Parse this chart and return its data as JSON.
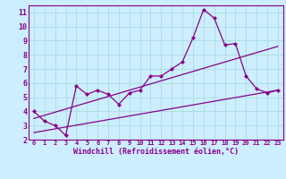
{
  "xlabel": "Windchill (Refroidissement éolien,°C)",
  "background_color": "#cceeff",
  "line_color": "#880088",
  "xlim": [
    -0.5,
    23.5
  ],
  "ylim": [
    2,
    11.5
  ],
  "xticks": [
    0,
    1,
    2,
    3,
    4,
    5,
    6,
    7,
    8,
    9,
    10,
    11,
    12,
    13,
    14,
    15,
    16,
    17,
    18,
    19,
    20,
    21,
    22,
    23
  ],
  "yticks": [
    2,
    3,
    4,
    5,
    6,
    7,
    8,
    9,
    10,
    11
  ],
  "grid_color": "#aadddd",
  "series1_x": [
    0,
    1,
    2,
    3,
    4,
    5,
    6,
    7,
    8,
    9,
    10,
    11,
    12,
    13,
    14,
    15,
    16,
    17,
    18,
    19,
    20,
    21,
    22,
    23
  ],
  "series1_y": [
    4.0,
    3.3,
    3.0,
    2.3,
    5.8,
    5.2,
    5.5,
    5.2,
    4.5,
    5.3,
    5.5,
    6.5,
    6.5,
    7.0,
    7.5,
    9.2,
    11.2,
    10.6,
    8.7,
    8.8,
    6.5,
    5.6,
    5.3,
    5.5
  ],
  "series2_x": [
    0,
    23
  ],
  "series2_y": [
    2.5,
    5.5
  ],
  "series3_x": [
    0,
    23
  ],
  "series3_y": [
    3.5,
    8.6
  ]
}
